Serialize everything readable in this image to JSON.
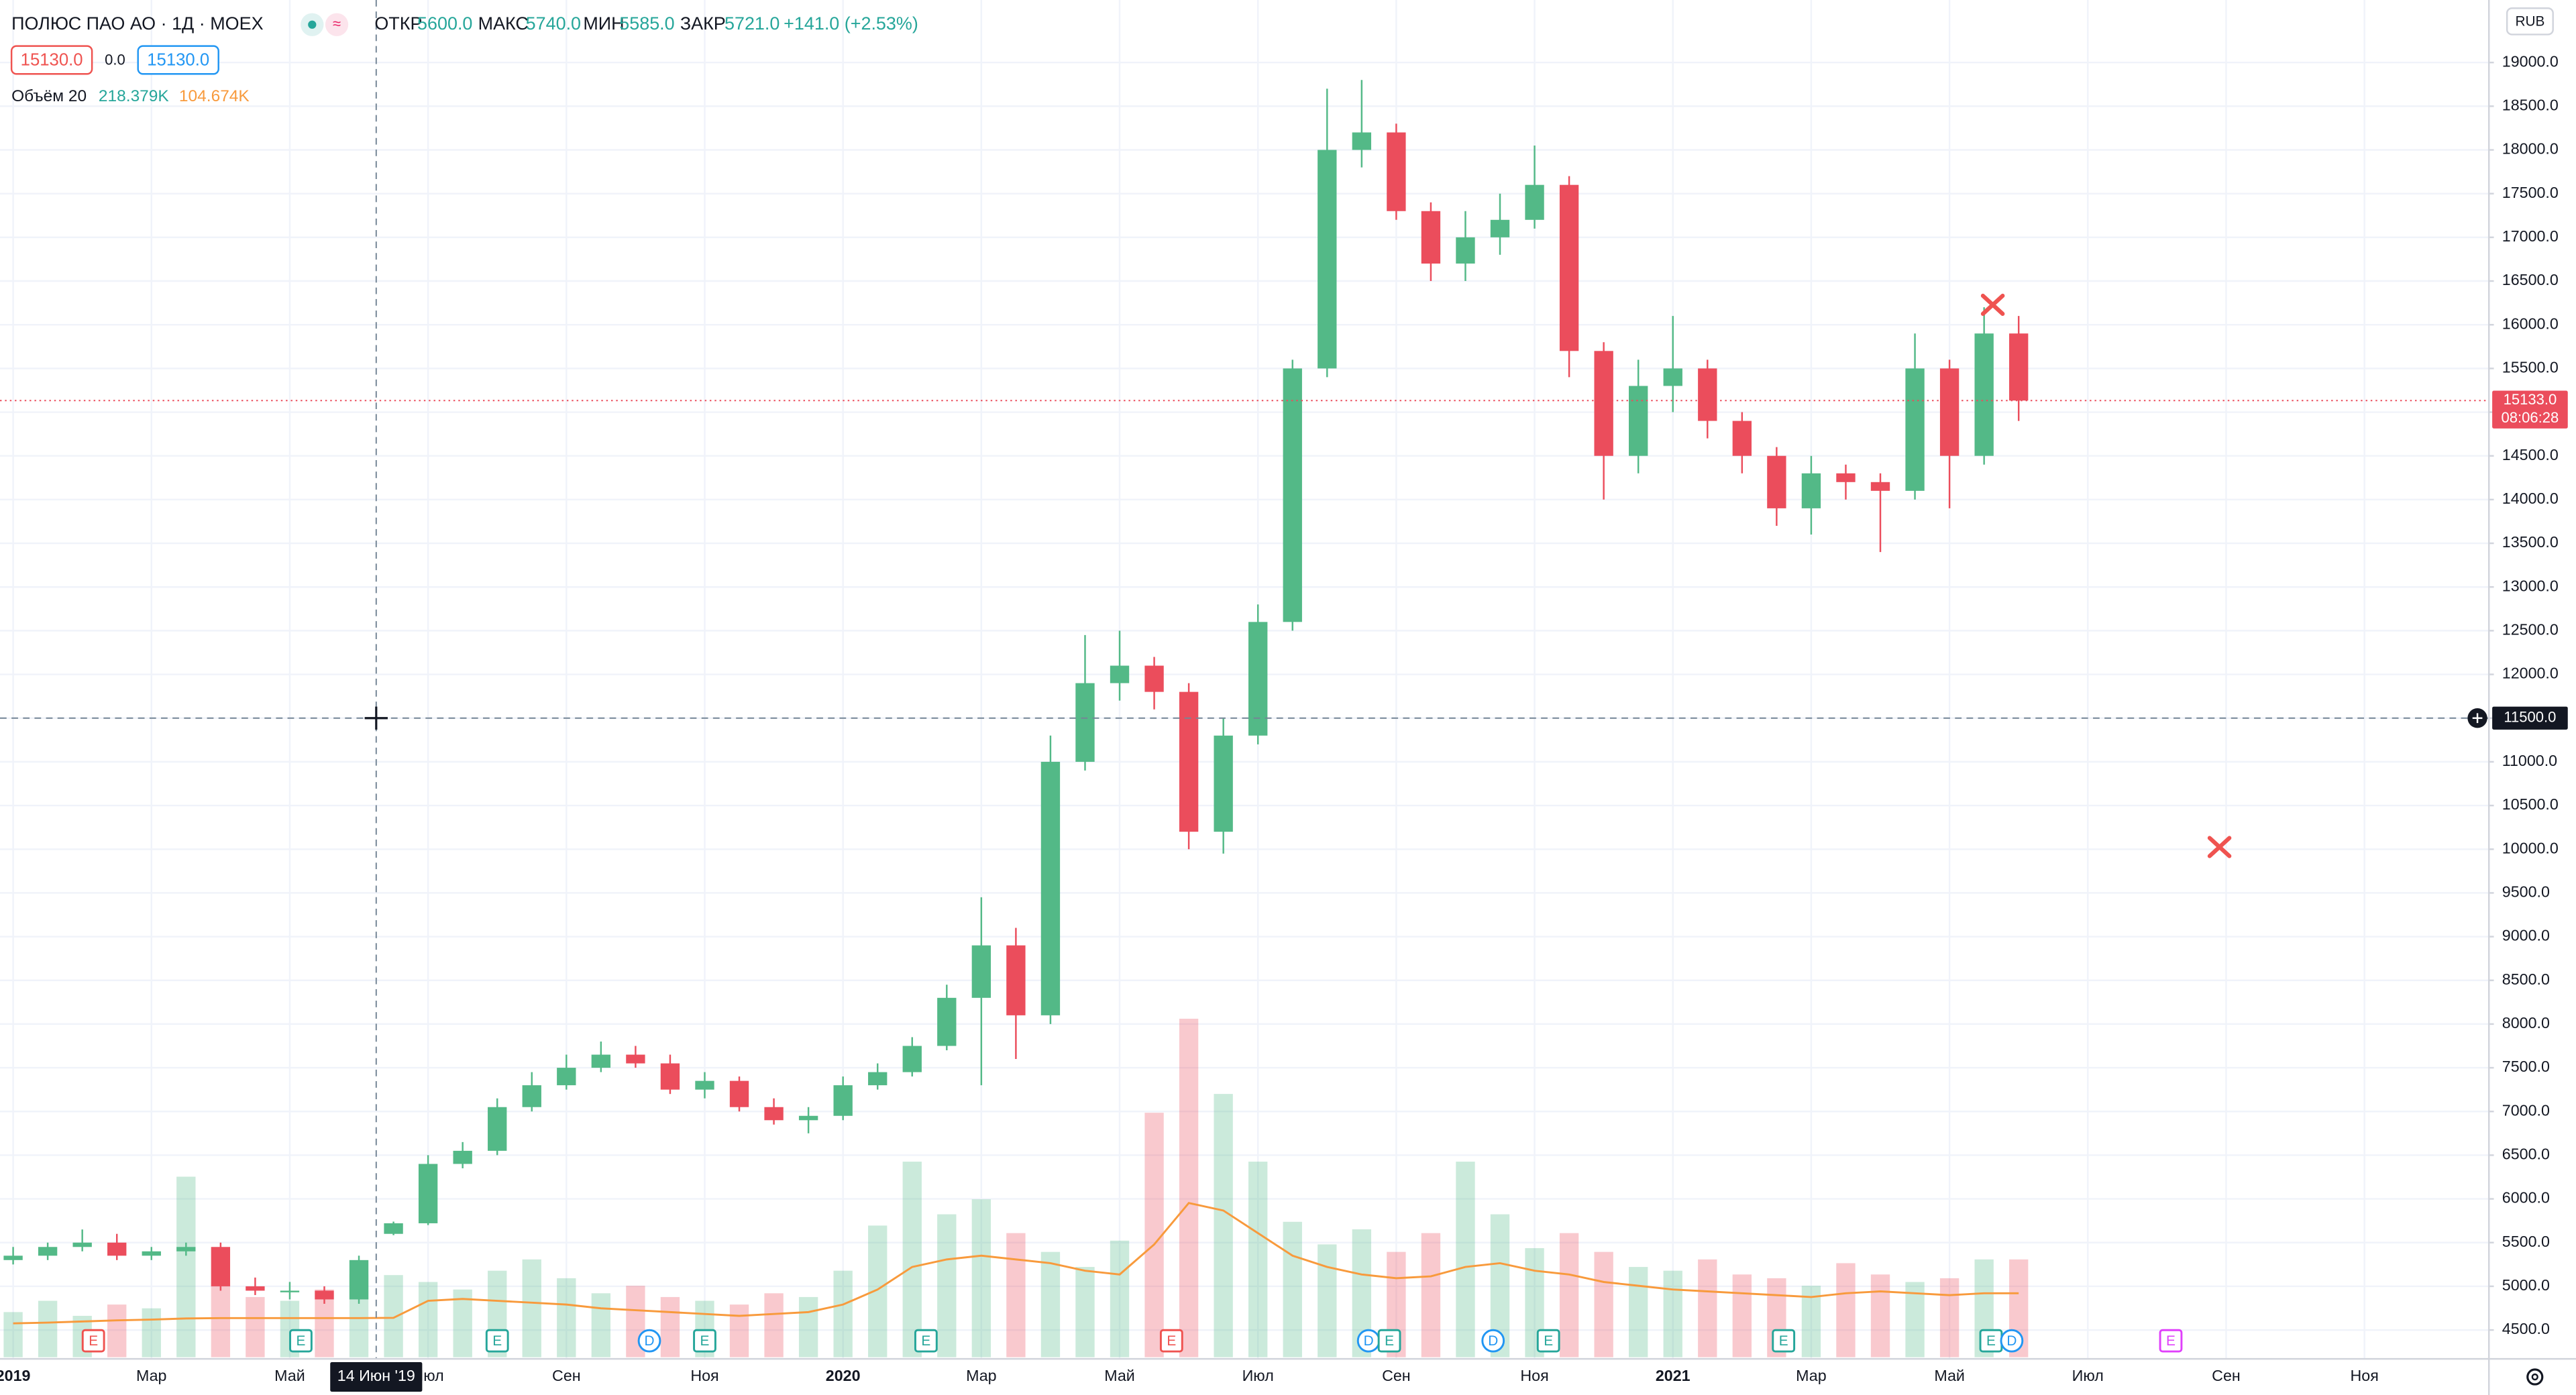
{
  "chart_data": {
    "type": "candlestick",
    "title": "ПОЛЮС ПАО АО · 1Д · MOEX",
    "ohlc_legend": [
      {
        "label": "ОТКР",
        "value": "5600.0"
      },
      {
        "label": "МАКС",
        "value": "5740.0"
      },
      {
        "label": "МИН",
        "value": "5585.0"
      },
      {
        "label": "ЗАКР",
        "value": "5721.0"
      }
    ],
    "change": "+141.0 (+2.53%)",
    "bid": "15130.0",
    "spread": "0.0",
    "ask": "15130.0",
    "volume_legend": {
      "name": "Объём 20",
      "value": "218.379K",
      "ma": "104.674K"
    },
    "currency": "RUB",
    "x": [
      0,
      0.5,
      1,
      1.5,
      2,
      2.5,
      3,
      3.5,
      4,
      4.5,
      5,
      5.5,
      6,
      6.5,
      7,
      7.5,
      8,
      8.5,
      9,
      9.5,
      10,
      10.5,
      11,
      11.5,
      12,
      12.5,
      13,
      13.5,
      14,
      14.5,
      15,
      15.5,
      16,
      16.5,
      17,
      17.5,
      18,
      18.5,
      19,
      19.5,
      20,
      20.5,
      21,
      21.5,
      22,
      22.5,
      23,
      23.5,
      24,
      24.5,
      25,
      25.5,
      26,
      26.5,
      27,
      27.5,
      28,
      28.5,
      29
    ],
    "open": [
      5300,
      5350,
      5450,
      5500,
      5350,
      5400,
      5450,
      5000,
      4950,
      4950,
      4850,
      5600,
      5721,
      6400,
      6550,
      7050,
      7300,
      7500,
      7650,
      7550,
      7250,
      7350,
      7050,
      6900,
      6950,
      7300,
      7450,
      7750,
      8300,
      8900,
      8100,
      11000,
      11900,
      12100,
      11800,
      10200,
      11300,
      12600,
      15500,
      18000,
      18200,
      17300,
      16700,
      17000,
      17200,
      17600,
      15700,
      14500,
      15300,
      15500,
      14900,
      14500,
      13900,
      14300,
      14200,
      14100,
      15500,
      14500,
      15900
    ],
    "high": [
      5450,
      5500,
      5650,
      5600,
      5450,
      5500,
      5500,
      5100,
      5050,
      5000,
      5350,
      5740,
      6500,
      6650,
      7150,
      7450,
      7650,
      7800,
      7750,
      7650,
      7450,
      7400,
      7150,
      7050,
      7400,
      7550,
      7850,
      8450,
      9450,
      9100,
      11300,
      12450,
      12500,
      12200,
      11900,
      11500,
      12800,
      15600,
      18700,
      18800,
      18300,
      17400,
      17300,
      17500,
      18050,
      17700,
      15800,
      15600,
      16100,
      15600,
      15000,
      14600,
      14500,
      14400,
      14300,
      15900,
      15600,
      16200,
      16100
    ],
    "low": [
      5250,
      5300,
      5400,
      5300,
      5300,
      5350,
      4950,
      4900,
      4850,
      4800,
      4800,
      5585,
      5700,
      6350,
      6500,
      7000,
      7250,
      7450,
      7500,
      7200,
      7150,
      7000,
      6850,
      6750,
      6900,
      7250,
      7400,
      7700,
      7300,
      7600,
      8000,
      10900,
      11700,
      11600,
      10000,
      9950,
      11200,
      12500,
      15400,
      17800,
      17200,
      16500,
      16500,
      16800,
      17100,
      15400,
      14000,
      14300,
      15000,
      14700,
      14300,
      13700,
      13600,
      14000,
      13400,
      14000,
      13900,
      14400,
      14900
    ],
    "close": [
      5350,
      5450,
      5500,
      5350,
      5400,
      5450,
      5000,
      4950,
      4950,
      4850,
      5300,
      5721,
      6400,
      6550,
      7050,
      7300,
      7500,
      7650,
      7550,
      7250,
      7350,
      7050,
      6900,
      6950,
      7300,
      7450,
      7750,
      8300,
      8900,
      8100,
      11000,
      11900,
      12100,
      11800,
      10200,
      11300,
      12600,
      15500,
      18000,
      18200,
      17300,
      16700,
      17000,
      17200,
      17600,
      15700,
      14500,
      15300,
      15500,
      14900,
      14500,
      13900,
      14300,
      14200,
      14100,
      15500,
      14500,
      15900,
      15133
    ],
    "volume": [
      120,
      150,
      110,
      140,
      130,
      480,
      200,
      160,
      150,
      180,
      220,
      218.379,
      200,
      180,
      230,
      260,
      210,
      170,
      190,
      160,
      150,
      140,
      170,
      160,
      230,
      350,
      520,
      380,
      420,
      330,
      280,
      240,
      310,
      650,
      900,
      700,
      520,
      360,
      300,
      340,
      280,
      330,
      520,
      380,
      290,
      330,
      280,
      240,
      230,
      260,
      220,
      210,
      190,
      250,
      220,
      200,
      210,
      260,
      260
    ],
    "volume_ma": [
      90,
      92,
      95,
      98,
      100,
      103,
      104,
      104,
      104,
      104,
      104,
      104.674,
      150,
      155,
      150,
      145,
      140,
      130,
      125,
      120,
      115,
      110,
      115,
      120,
      140,
      180,
      240,
      260,
      270,
      260,
      250,
      230,
      220,
      300,
      410,
      390,
      330,
      270,
      240,
      220,
      210,
      215,
      240,
      250,
      230,
      220,
      200,
      190,
      180,
      175,
      170,
      165,
      160,
      170,
      175,
      170,
      165,
      170,
      170
    ],
    "colors": {
      "up": "#53b987",
      "down": "#eb4d5c",
      "volume_ma": "#f89a3c"
    },
    "xlim": [
      -0.19,
      35.8
    ],
    "xticks": [
      {
        "value": 0,
        "label": "2019"
      },
      {
        "value": 2,
        "label": "Мар"
      },
      {
        "value": 4,
        "label": "Май"
      },
      {
        "value": 6,
        "label": "Июл"
      },
      {
        "value": 8,
        "label": "Сен"
      },
      {
        "value": 10,
        "label": "Ноя"
      },
      {
        "value": 12,
        "label": "2020"
      },
      {
        "value": 14,
        "label": "Мар"
      },
      {
        "value": 16,
        "label": "Май"
      },
      {
        "value": 18,
        "label": "Июл"
      },
      {
        "value": 20,
        "label": "Сен"
      },
      {
        "value": 22,
        "label": "Ноя"
      },
      {
        "value": 24,
        "label": "2021"
      },
      {
        "value": 26,
        "label": "Мар"
      },
      {
        "value": 28,
        "label": "Май"
      },
      {
        "value": 30,
        "label": "Июл"
      },
      {
        "value": 32,
        "label": "Сен"
      },
      {
        "value": 34,
        "label": "Ноя"
      }
    ],
    "ylim": [
      4170,
      19715
    ],
    "yticks": [
      {
        "value": 4500,
        "label": "4500.0"
      },
      {
        "value": 5000,
        "label": "5000.0"
      },
      {
        "value": 5500,
        "label": "5500.0"
      },
      {
        "value": 6000,
        "label": "6000.0"
      },
      {
        "value": 6500,
        "label": "6500.0"
      },
      {
        "value": 7000,
        "label": "7000.0"
      },
      {
        "value": 7500,
        "label": "7500.0"
      },
      {
        "value": 8000,
        "label": "8000.0"
      },
      {
        "value": 8500,
        "label": "8500.0"
      },
      {
        "value": 9000,
        "label": "9000.0"
      },
      {
        "value": 9500,
        "label": "9500.0"
      },
      {
        "value": 10000,
        "label": "10000.0"
      },
      {
        "value": 10500,
        "label": "10500.0"
      },
      {
        "value": 11000,
        "label": "11000.0"
      },
      {
        "value": 11500,
        "label": "11500.0"
      },
      {
        "value": 12000,
        "label": "12000.0"
      },
      {
        "value": 12500,
        "label": "12500.0"
      },
      {
        "value": 13000,
        "label": "13000.0"
      },
      {
        "value": 13500,
        "label": "13500.0"
      },
      {
        "value": 14000,
        "label": "14000.0"
      },
      {
        "value": 14500,
        "label": "14500.0"
      },
      {
        "value": 15000,
        "label": "15000.0"
      },
      {
        "value": 15500,
        "label": "15500.0"
      },
      {
        "value": 16000,
        "label": "16000.0"
      },
      {
        "value": 16500,
        "label": "16500.0"
      },
      {
        "value": 17000,
        "label": "17000.0"
      },
      {
        "value": 17500,
        "label": "17500.0"
      },
      {
        "value": 18000,
        "label": "18000.0"
      },
      {
        "value": 18500,
        "label": "18500.0"
      },
      {
        "value": 19000,
        "label": "19000.0"
      }
    ],
    "grid": true,
    "last_price": {
      "label": "15133.0",
      "countdown": "08:06:28"
    },
    "crosshair": {
      "x": 5.25,
      "x_label": "14 Июн '19",
      "y": 11500,
      "y_label": "11500.0"
    },
    "events": [
      {
        "x": 1.16,
        "label": "E",
        "color": "#ef5350"
      },
      {
        "x": 4.16,
        "label": "E",
        "color": "#26a69a"
      },
      {
        "x": 7.0,
        "label": "E",
        "color": "#26a69a"
      },
      {
        "x": 9.2,
        "label": "D",
        "color": "#2196f3"
      },
      {
        "x": 10.0,
        "label": "E",
        "color": "#26a69a"
      },
      {
        "x": 13.2,
        "label": "E",
        "color": "#26a69a"
      },
      {
        "x": 16.75,
        "label": "E",
        "color": "#ef5350"
      },
      {
        "x": 19.6,
        "label": "D",
        "color": "#2196f3"
      },
      {
        "x": 19.9,
        "label": "E",
        "color": "#26a69a"
      },
      {
        "x": 21.4,
        "label": "D",
        "color": "#2196f3"
      },
      {
        "x": 22.2,
        "label": "E",
        "color": "#26a69a"
      },
      {
        "x": 25.6,
        "label": "E",
        "color": "#26a69a"
      },
      {
        "x": 28.6,
        "label": "E",
        "color": "#26a69a"
      },
      {
        "x": 28.9,
        "label": "D",
        "color": "#2196f3"
      },
      {
        "x": 31.2,
        "label": "E",
        "color": "#e040fb"
      }
    ]
  }
}
